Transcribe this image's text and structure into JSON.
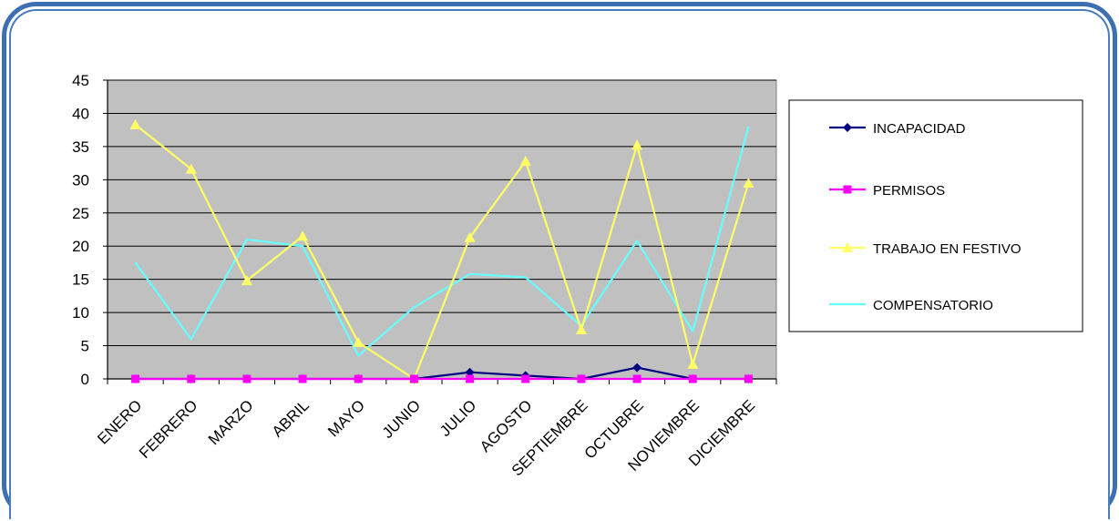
{
  "chart_data": {
    "type": "line",
    "title": "",
    "xlabel": "",
    "ylabel": "",
    "ylim": [
      0,
      45
    ],
    "yticks": [
      0,
      5,
      10,
      15,
      20,
      25,
      30,
      35,
      40,
      45
    ],
    "grid": true,
    "plot_background": "#c0c0c0",
    "legend_position": "right",
    "categories": [
      "ENERO",
      "FEBRERO",
      "MARZO",
      "ABRIL",
      "MAYO",
      "JUNIO",
      "JULIO",
      "AGOSTO",
      "SEPTIEMBRE",
      "OCTUBRE",
      "NOVIEMBRE",
      "DICIEMBRE"
    ],
    "series": [
      {
        "name": "INCAPACIDAD",
        "color": "#000080",
        "marker": "diamond",
        "values": [
          0,
          0,
          0,
          0,
          0,
          0,
          1,
          0.5,
          0,
          1.7,
          0,
          0
        ]
      },
      {
        "name": "PERMISOS",
        "color": "#ff00ff",
        "marker": "square",
        "values": [
          0,
          0,
          0,
          0,
          0,
          0,
          0,
          0,
          0,
          0,
          0,
          0
        ]
      },
      {
        "name": "TRABAJO EN FESTIVO",
        "color": "#ffff66",
        "marker": "triangle",
        "values": [
          38.3,
          31.6,
          14.8,
          21.5,
          5.5,
          0,
          21.3,
          32.8,
          7.4,
          35.2,
          2.2,
          29.5
        ]
      },
      {
        "name": "COMPENSATORIO",
        "color": "#66ffff",
        "marker": "none",
        "values": [
          17.5,
          6,
          21,
          20,
          3.5,
          10.8,
          15.8,
          15.3,
          8,
          20.8,
          7.2,
          38
        ]
      }
    ]
  }
}
